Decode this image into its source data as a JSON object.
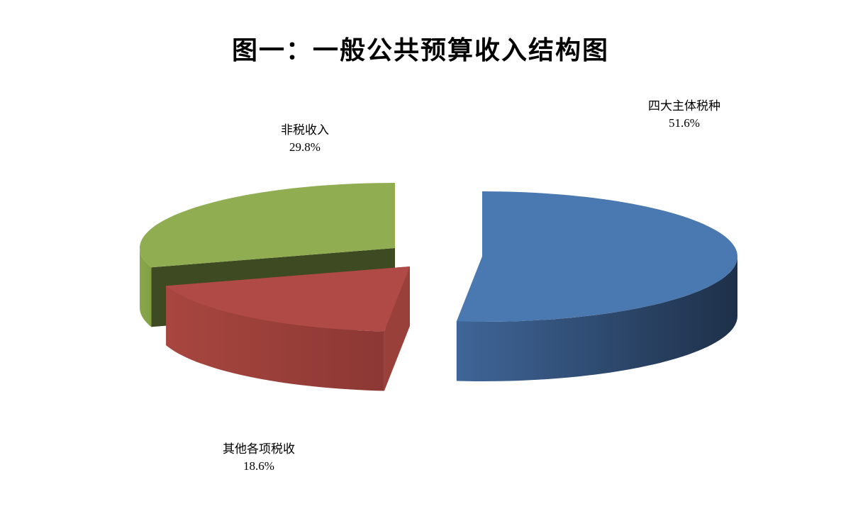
{
  "chart_data": {
    "type": "pie",
    "style": "3d-exploded",
    "title": "图一：一般公共预算收入结构图",
    "categories": [
      "四大主体税种",
      "其他各项税收",
      "非税收入"
    ],
    "values": [
      51.6,
      18.6,
      29.8
    ],
    "value_labels": [
      "51.6%",
      "18.6%",
      "29.8%"
    ],
    "colors": [
      "#4a78b0",
      "#b04a46",
      "#90ad52"
    ],
    "legend": "none"
  }
}
